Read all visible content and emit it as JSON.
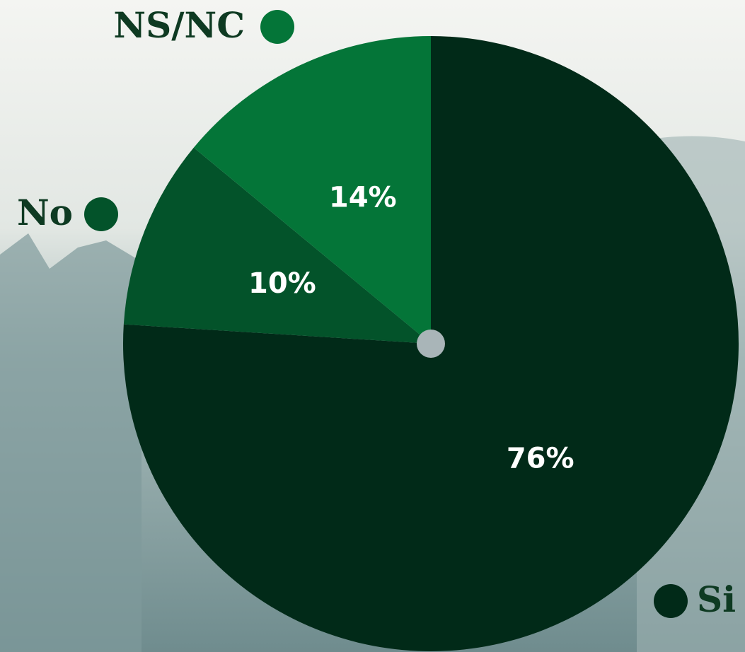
{
  "chart_data": {
    "type": "pie",
    "categories": [
      "Si",
      "No",
      "NS/NC"
    ],
    "values": [
      76,
      10,
      14
    ],
    "value_labels": [
      "76%",
      "10%",
      "14%"
    ],
    "colors": [
      "#012a18",
      "#03532a",
      "#047538"
    ]
  }
}
